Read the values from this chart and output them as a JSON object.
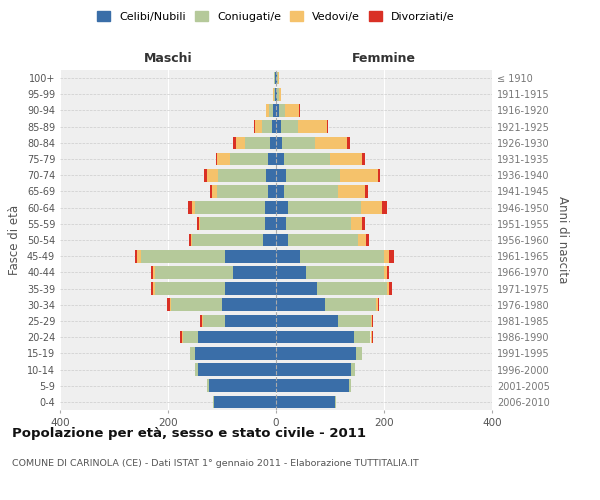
{
  "age_groups": [
    "0-4",
    "5-9",
    "10-14",
    "15-19",
    "20-24",
    "25-29",
    "30-34",
    "35-39",
    "40-44",
    "45-49",
    "50-54",
    "55-59",
    "60-64",
    "65-69",
    "70-74",
    "75-79",
    "80-84",
    "85-89",
    "90-94",
    "95-99",
    "100+"
  ],
  "birth_years": [
    "2006-2010",
    "2001-2005",
    "1996-2000",
    "1991-1995",
    "1986-1990",
    "1981-1985",
    "1976-1980",
    "1971-1975",
    "1966-1970",
    "1961-1965",
    "1956-1960",
    "1951-1955",
    "1946-1950",
    "1941-1945",
    "1936-1940",
    "1931-1935",
    "1926-1930",
    "1921-1925",
    "1916-1920",
    "1911-1915",
    "≤ 1910"
  ],
  "maschi": {
    "celibi": [
      115,
      125,
      145,
      150,
      145,
      95,
      100,
      95,
      80,
      95,
      25,
      20,
      20,
      15,
      18,
      15,
      12,
      8,
      5,
      2,
      2
    ],
    "coniugati": [
      2,
      2,
      5,
      10,
      28,
      40,
      95,
      130,
      145,
      155,
      130,
      120,
      130,
      95,
      90,
      70,
      45,
      18,
      8,
      2,
      1
    ],
    "vedovi": [
      0,
      0,
      0,
      0,
      2,
      2,
      2,
      2,
      2,
      8,
      2,
      3,
      5,
      8,
      20,
      25,
      18,
      12,
      5,
      1,
      0
    ],
    "divorziati": [
      0,
      0,
      0,
      0,
      2,
      3,
      5,
      4,
      5,
      3,
      5,
      4,
      8,
      4,
      5,
      2,
      5,
      2,
      0,
      0,
      0
    ]
  },
  "femmine": {
    "nubili": [
      110,
      135,
      138,
      148,
      145,
      115,
      90,
      75,
      55,
      45,
      22,
      18,
      22,
      15,
      18,
      15,
      12,
      10,
      5,
      2,
      2
    ],
    "coniugate": [
      2,
      3,
      8,
      12,
      30,
      60,
      95,
      130,
      145,
      155,
      130,
      120,
      135,
      100,
      100,
      85,
      60,
      30,
      12,
      3,
      1
    ],
    "vedove": [
      0,
      0,
      0,
      0,
      2,
      3,
      3,
      5,
      5,
      10,
      15,
      22,
      40,
      50,
      70,
      60,
      60,
      55,
      25,
      5,
      2
    ],
    "divorziate": [
      0,
      0,
      0,
      0,
      2,
      2,
      3,
      5,
      5,
      8,
      5,
      5,
      8,
      5,
      5,
      5,
      5,
      2,
      2,
      0,
      0
    ]
  },
  "colors": {
    "celibi": "#3a6ea8",
    "coniugati": "#b5c99a",
    "vedovi": "#f5c26b",
    "divorziati": "#d93025"
  },
  "title": "Popolazione per età, sesso e stato civile - 2011",
  "subtitle": "COMUNE DI CARINOLA (CE) - Dati ISTAT 1° gennaio 2011 - Elaborazione TUTTITALIA.IT",
  "xlim": 400,
  "ylabel_left": "Fasce di età",
  "ylabel_right": "Anni di nascita",
  "xlabel_maschi": "Maschi",
  "xlabel_femmine": "Femmine",
  "legend_labels": [
    "Celibi/Nubili",
    "Coniugati/e",
    "Vedovi/e",
    "Divorziati/e"
  ],
  "background_color": "#ffffff",
  "plot_bg_color": "#efefef"
}
